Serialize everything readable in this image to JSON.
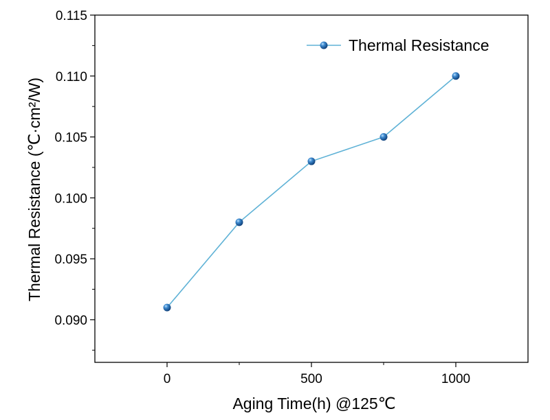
{
  "chart_data": {
    "type": "line",
    "title": "",
    "xlabel": "Aging Time(h) @125℃",
    "ylabel": "Thermal Resistance (℃·cm²/W)",
    "xlim": [
      -250,
      1250
    ],
    "ylim": [
      0.0865,
      0.115
    ],
    "xticks": [
      0,
      500,
      1000
    ],
    "xtick_labels": [
      "0",
      "500",
      "1000"
    ],
    "yticks": [
      0.09,
      0.095,
      0.1,
      0.105,
      0.11,
      0.115
    ],
    "ytick_labels": [
      "0.090",
      "0.095",
      "0.100",
      "0.105",
      "0.110",
      "0.115"
    ],
    "grid": false,
    "legend_position": "top-right",
    "series": [
      {
        "name": "Thermal Resistance",
        "color": "#5fb2d6",
        "marker_color": "#1e5f96",
        "x": [
          0,
          250,
          500,
          750,
          1000
        ],
        "y": [
          0.091,
          0.098,
          0.103,
          0.105,
          0.11
        ]
      }
    ]
  }
}
